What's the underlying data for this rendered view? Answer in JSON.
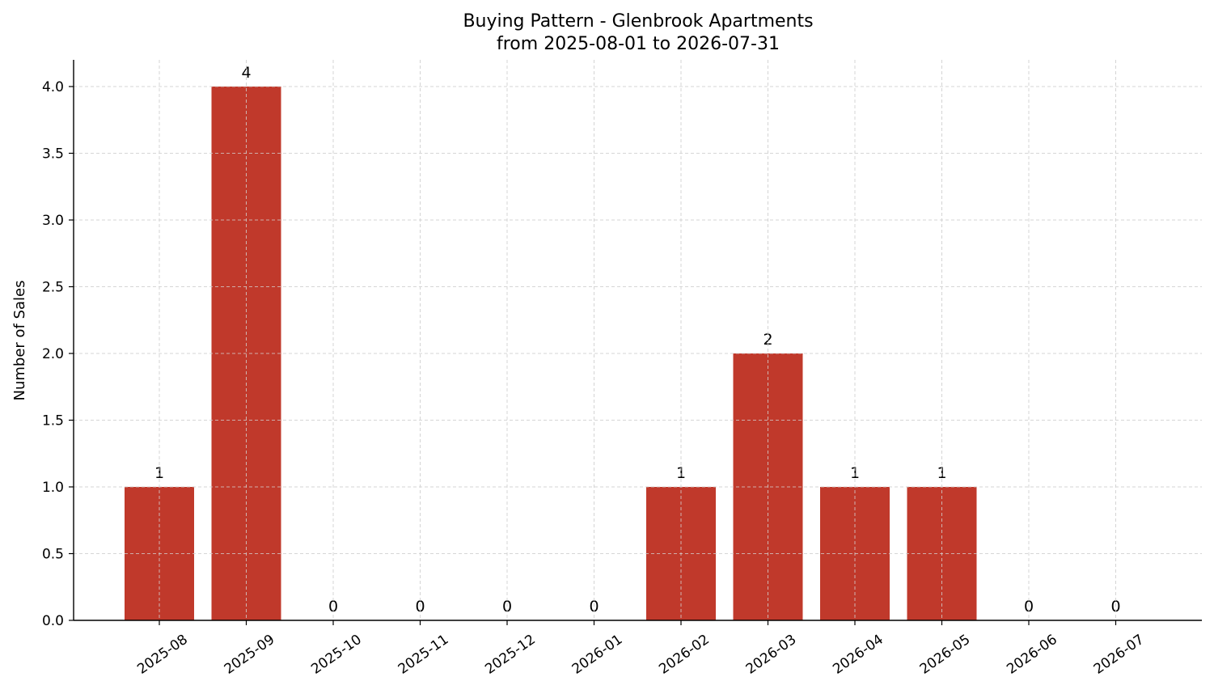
{
  "chart_data": {
    "type": "bar",
    "title": "Buying Pattern - Glenbrook Apartments",
    "subtitle": "from 2025-08-01 to 2026-07-31",
    "xlabel": "",
    "ylabel": "Number of Sales",
    "categories": [
      "2025-08",
      "2025-09",
      "2025-10",
      "2025-11",
      "2025-12",
      "2026-01",
      "2026-02",
      "2026-03",
      "2026-04",
      "2026-05",
      "2026-06",
      "2026-07"
    ],
    "values": [
      1,
      4,
      0,
      0,
      0,
      0,
      1,
      2,
      1,
      1,
      0,
      0
    ],
    "data_labels": [
      "1",
      "4",
      "0",
      "0",
      "0",
      "0",
      "1",
      "2",
      "1",
      "1",
      "0",
      "0"
    ],
    "ylim": [
      0,
      4.2
    ],
    "yticks": [
      0.0,
      0.5,
      1.0,
      1.5,
      2.0,
      2.5,
      3.0,
      3.5,
      4.0
    ],
    "ytick_labels": [
      "0.0",
      "0.5",
      "1.0",
      "1.5",
      "2.0",
      "2.5",
      "3.0",
      "3.5",
      "4.0"
    ],
    "grid": true,
    "bar_color": "#c0392b"
  }
}
